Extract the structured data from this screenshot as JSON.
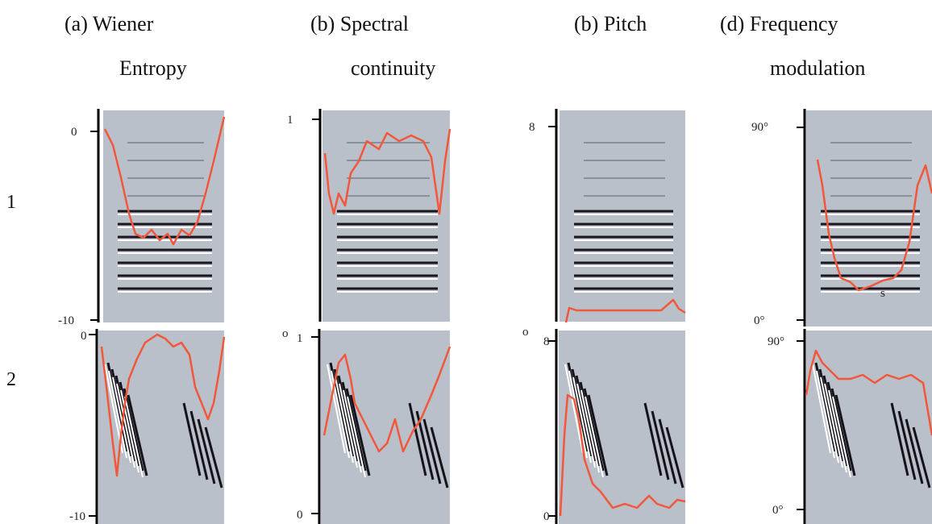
{
  "columns": [
    {
      "title": "(a)  Wiener",
      "subtitle": "Entropy"
    },
    {
      "title": "(b) Spectral",
      "subtitle": "continuity"
    },
    {
      "title": "(b) Pitch"
    },
    {
      "title": "(d) Frequency",
      "subtitle": "modulation"
    }
  ],
  "rows": [
    {
      "label": "1",
      "panels": [
        {
          "ticks": [
            "0",
            "-10"
          ]
        },
        {
          "ticks": [
            "1"
          ]
        },
        {
          "ticks": [
            "8"
          ]
        },
        {
          "ticks": [
            "90°",
            "0°"
          ],
          "note": "s"
        }
      ]
    },
    {
      "label": "2",
      "panels": [
        {
          "ticks": [
            "0",
            "-10"
          ]
        },
        {
          "ticks": [
            "o",
            "1",
            "0"
          ]
        },
        {
          "ticks": [
            "o",
            "8",
            "0"
          ]
        },
        {
          "ticks": [
            "90°",
            "0°"
          ]
        }
      ]
    }
  ]
}
